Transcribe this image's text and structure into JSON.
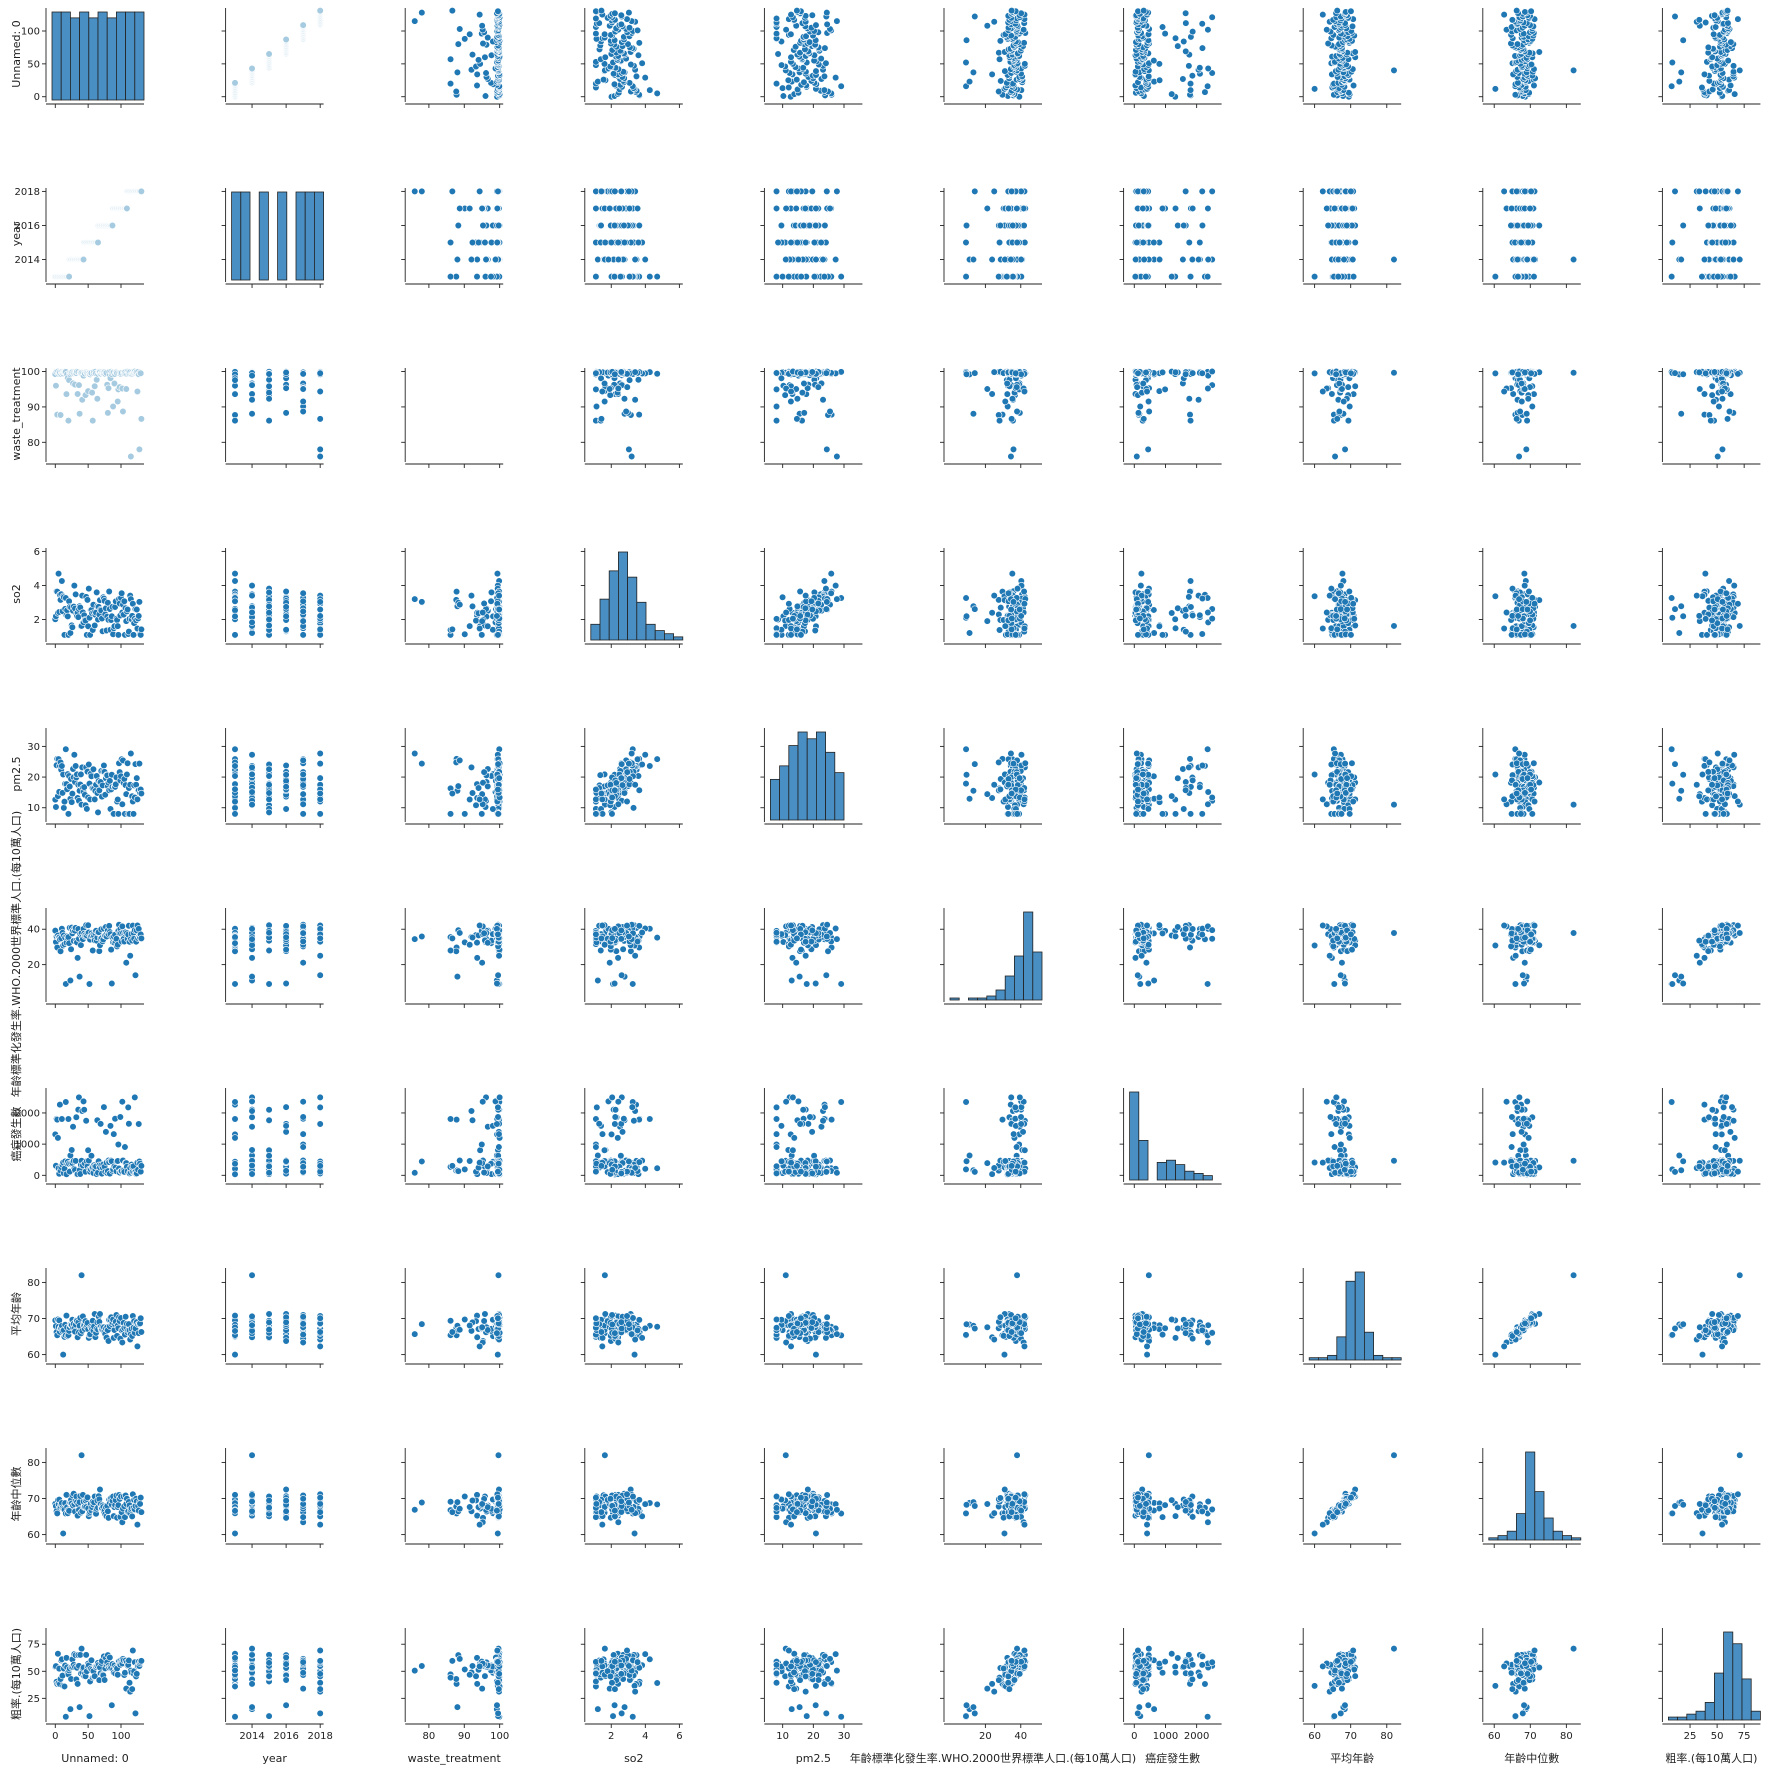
{
  "chart_data": {
    "type": "scatter",
    "title": "",
    "variables": [
      "Unnamed: 0",
      "year",
      "waste_treatment",
      "so2",
      "pm2.5",
      "年齡標準化發生率.WHO.2000世界標準人口.(每10萬人口)",
      "癌症發生數",
      "平均年齡",
      "年齡中位數",
      "粗率.(每10萬人口)"
    ],
    "y_labels": [
      "Unnamed: 0",
      "year",
      "waste_treatment",
      "so2",
      "pm2.5",
      "年齡標準化發生率.WHO.2000世界標準人口.(每10萬人口)",
      "癌症發生數",
      "平均年齡",
      "年齡中位數",
      "粗率.(每10萬人口)"
    ],
    "x_labels": [
      "Unnamed: 0",
      "year",
      "waste_treatment",
      "so2",
      "pm2.5",
      "年齡標準化發生率.WHO.2000世界標準人口.(每10萬人口)",
      "癌症發生數",
      "平均年齡",
      "年齡中位數",
      "粗率.(每10萬人口)"
    ],
    "ranges": [
      [
        -5,
        135
      ],
      [
        2012.8,
        2018.2
      ],
      [
        75,
        101
      ],
      [
        0.8,
        6.2
      ],
      [
        6,
        36
      ],
      [
        0,
        52
      ],
      [
        -150,
        2800
      ],
      [
        58.5,
        84
      ],
      [
        58.5,
        84
      ],
      [
        5,
        90
      ]
    ],
    "y_ticks": [
      [
        0,
        50,
        100
      ],
      [
        2014,
        2016,
        2018
      ],
      [
        80,
        90,
        100
      ],
      [
        2,
        4,
        6
      ],
      [
        10,
        20,
        30
      ],
      [
        20,
        40
      ],
      [
        0,
        1000,
        2000
      ],
      [
        60,
        70,
        80
      ],
      [
        60,
        70,
        80
      ],
      [
        25,
        50,
        75
      ]
    ],
    "x_ticks": [
      [
        0,
        50,
        100
      ],
      [
        2014,
        2016,
        2018
      ],
      [
        80,
        90,
        100
      ],
      [
        2,
        4,
        6
      ],
      [
        10,
        20,
        30
      ],
      [
        20,
        40
      ],
      [
        0,
        1000,
        2000
      ],
      [
        60,
        70,
        80
      ],
      [
        60,
        70,
        80
      ],
      [
        25,
        50,
        75
      ]
    ],
    "histograms": [
      [
        15,
        15,
        14,
        15,
        14,
        15,
        14,
        15,
        15,
        15
      ],
      [
        14,
        14,
        0,
        14,
        0,
        14,
        0,
        14,
        14,
        14
      ],
      [
        0,
        0,
        0,
        0,
        0,
        0,
        0,
        0,
        0,
        0
      ],
      [
        5,
        13,
        22,
        28,
        20,
        12,
        5,
        3,
        2,
        1
      ],
      [
        6,
        8,
        11,
        13,
        12,
        13,
        10,
        7,
        0,
        0
      ],
      [
        1,
        0,
        1,
        1,
        2,
        5,
        12,
        22,
        44,
        24
      ],
      [
        40,
        18,
        0,
        8,
        9,
        7,
        4,
        3,
        2,
        0
      ],
      [
        1,
        1,
        2,
        10,
        34,
        38,
        12,
        2,
        1,
        1
      ],
      [
        1,
        2,
        4,
        12,
        40,
        22,
        10,
        4,
        2,
        1
      ],
      [
        1,
        1,
        2,
        3,
        6,
        16,
        30,
        26,
        14,
        3
      ]
    ],
    "series_color": "#1f77b4",
    "hist_fill": "#4a8fc4",
    "pale_color": "#a6cbe0",
    "grid": false,
    "legend": "none",
    "n_points": 132
  }
}
